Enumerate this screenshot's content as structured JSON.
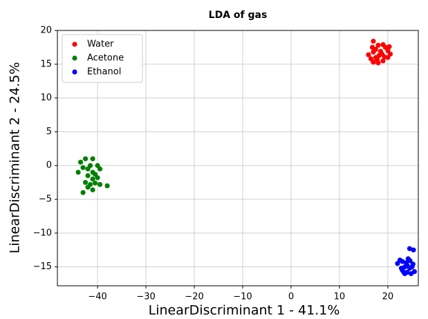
{
  "chart_data": {
    "type": "scatter",
    "title": "LDA of gas",
    "x_label": "LinearDiscriminant 1 - 41.1%",
    "y_label": "LinearDiscriminant 2 - 24.5%",
    "xlim": [
      -48.3,
      26.3
    ],
    "ylim": [
      -17.8,
      20
    ],
    "xticks": [
      {
        "value": -40,
        "label": "−40"
      },
      {
        "value": -30,
        "label": "−30"
      },
      {
        "value": -20,
        "label": "−20"
      },
      {
        "value": -10,
        "label": "−10"
      },
      0,
      10,
      20
    ],
    "yticks": [
      {
        "value": -15,
        "label": "−15"
      },
      {
        "value": -10,
        "label": "−10"
      },
      {
        "value": -5,
        "label": "−5"
      },
      0,
      5,
      10,
      15,
      20
    ],
    "grid": true,
    "legend": "upper left",
    "series": [
      {
        "name": "Water",
        "color": "#ff0000",
        "x": [
          17,
          18,
          19,
          16,
          16.5,
          17,
          17.5,
          18.5,
          19.5,
          20,
          20.5,
          20,
          19,
          18,
          17,
          17.5,
          18.2,
          18.8,
          16.8,
          19.3,
          17.8,
          20.3
        ],
        "values": [
          18.4,
          17.8,
          17.9,
          16.4,
          15.8,
          16.8,
          17.2,
          16.9,
          17.5,
          17,
          16.5,
          16,
          15.5,
          15.2,
          15.3,
          16,
          16.3,
          16.5,
          17.5,
          16.1,
          15.7,
          17.6
        ]
      },
      {
        "name": "Acetone",
        "color": "#008000",
        "x": [
          -44,
          -43.5,
          -43,
          -42.5,
          -41,
          -40,
          -41.5,
          -39.5,
          -42,
          -41,
          -40.5,
          -43,
          -42,
          -41,
          -40.5,
          -38,
          -39.5,
          -42.5,
          -41.5,
          -40,
          -42,
          -41
        ],
        "values": [
          -1,
          0.5,
          -0.3,
          1,
          1,
          0,
          0,
          -0.5,
          -1.5,
          -2,
          -1.3,
          -4,
          -3.2,
          -3.6,
          -2.6,
          -3,
          -2.8,
          -2.5,
          -2.8,
          -1.8,
          -0.5,
          -1
        ]
      },
      {
        "name": "Ethanol",
        "color": "#0000ff",
        "x": [
          24.5,
          25.3,
          22,
          22.5,
          23,
          23.5,
          24,
          24.5,
          25,
          23,
          23.5,
          24,
          24.8,
          25.5,
          22.8,
          24.2,
          23.8,
          24.6,
          25.2,
          23.3
        ],
        "values": [
          -12.3,
          -12.5,
          -14.5,
          -14,
          -14.2,
          -15,
          -14.8,
          -15.2,
          -15,
          -15.5,
          -16,
          -15.8,
          -16,
          -15.7,
          -15.2,
          -13.8,
          -14.4,
          -14.1,
          -14.6,
          -15.8
        ]
      }
    ]
  }
}
